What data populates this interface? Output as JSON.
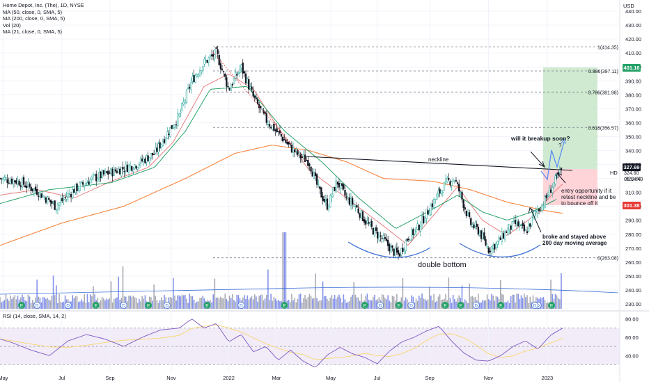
{
  "legend": {
    "title": "Home Depot, Inc. (The), 1D, NYSE",
    "lines": [
      "MA (50, close, 0, SMA, 5)",
      "MA (200, close, 0, SMA, 5)",
      "Vol (20)",
      "MA (21, close, 0, SMA, 5)"
    ]
  },
  "currency": "USD",
  "rsi_legend": "RSI (14, close, SMA, 14, 2)",
  "symbol": "HD",
  "price_tags": {
    "target": "401.16",
    "current": "327.69",
    "current_sub1": "324.60",
    "current_sub2": "05:14:40",
    "stop": "301.38"
  },
  "colors": {
    "up_candle": "#26a69a",
    "down_candle": "#131722",
    "ma50": "#26a269",
    "ma200": "#f7843e",
    "ma21": "#e57373",
    "rsi": "#7e57c2",
    "target_zone": "#c8e6c9",
    "stop_zone": "#ffcdd2",
    "annotation_blue": "#3b6fd6"
  },
  "fib_levels": [
    {
      "label": "1(414.35)",
      "value": 414.35
    },
    {
      "label": "0.886(397.11)",
      "value": 397.11
    },
    {
      "label": "0.786(381.98)",
      "value": 381.98
    },
    {
      "label": "0.618(356.57)",
      "value": 356.57
    },
    {
      "label": "0(263.08)",
      "value": 263.08
    }
  ],
  "annotations": {
    "neckline": "neckline",
    "breakup": "will it breakup soon?",
    "question": "?",
    "double_bottom": "double bottom",
    "entry": [
      "entry opportunity if it",
      "retest neckline and be",
      "to bounce off it"
    ],
    "broke": [
      "broke and stayed above",
      "200 day moving average"
    ]
  },
  "events": [
    "E",
    "D",
    "D",
    "E",
    "D",
    "E",
    "D",
    "E",
    "D",
    "E",
    "E",
    "D",
    "E",
    "D",
    "E",
    "E",
    "D",
    "E",
    "D",
    "E",
    "D"
  ],
  "chart_data": {
    "type": "candlestick",
    "title": "Home Depot, Inc. (The), 1D, NYSE",
    "x_ticks": [
      "May",
      "Jul",
      "Sep",
      "Nov",
      "2022",
      "Mar",
      "May",
      "Jul",
      "Sep",
      "Nov",
      "2023"
    ],
    "y_ticks": [
      230,
      240,
      250,
      260,
      270,
      280,
      290,
      300,
      310,
      320,
      330,
      340,
      350,
      360,
      370,
      380,
      390,
      400,
      410,
      420,
      430,
      440
    ],
    "ylim": [
      225,
      448
    ],
    "rsi_ticks": [
      40,
      60,
      80
    ],
    "rsi_ylim": [
      22,
      88
    ],
    "rsi_bands": [
      30,
      70
    ],
    "price_path": [
      [
        0,
        320
      ],
      [
        0.03,
        318
      ],
      [
        0.06,
        311
      ],
      [
        0.09,
        300
      ],
      [
        0.12,
        312
      ],
      [
        0.15,
        320
      ],
      [
        0.19,
        326
      ],
      [
        0.22,
        330
      ],
      [
        0.25,
        338
      ],
      [
        0.27,
        352
      ],
      [
        0.29,
        365
      ],
      [
        0.31,
        390
      ],
      [
        0.33,
        403
      ],
      [
        0.35,
        410
      ],
      [
        0.37,
        384
      ],
      [
        0.39,
        400
      ],
      [
        0.41,
        378
      ],
      [
        0.43,
        362
      ],
      [
        0.455,
        350
      ],
      [
        0.47,
        342
      ],
      [
        0.485,
        336
      ],
      [
        0.5,
        332
      ],
      [
        0.515,
        312
      ],
      [
        0.53,
        300
      ],
      [
        0.545,
        318
      ],
      [
        0.56,
        306
      ],
      [
        0.575,
        300
      ],
      [
        0.59,
        290
      ],
      [
        0.605,
        282
      ],
      [
        0.62,
        276
      ],
      [
        0.635,
        268
      ],
      [
        0.645,
        265
      ],
      [
        0.66,
        278
      ],
      [
        0.675,
        284
      ],
      [
        0.69,
        295
      ],
      [
        0.705,
        306
      ],
      [
        0.715,
        313
      ],
      [
        0.725,
        318
      ],
      [
        0.735,
        320
      ],
      [
        0.745,
        308
      ],
      [
        0.76,
        288
      ],
      [
        0.775,
        282
      ],
      [
        0.79,
        269
      ],
      [
        0.805,
        274
      ],
      [
        0.82,
        283
      ],
      [
        0.835,
        288
      ],
      [
        0.85,
        281
      ],
      [
        0.865,
        295
      ],
      [
        0.88,
        303
      ],
      [
        0.89,
        312
      ],
      [
        0.9,
        320
      ],
      [
        0.91,
        327
      ]
    ],
    "ma50_path": [
      [
        0,
        302
      ],
      [
        0.08,
        312
      ],
      [
        0.18,
        317
      ],
      [
        0.25,
        328
      ],
      [
        0.3,
        354
      ],
      [
        0.34,
        384
      ],
      [
        0.4,
        386
      ],
      [
        0.46,
        354
      ],
      [
        0.52,
        332
      ],
      [
        0.58,
        306
      ],
      [
        0.64,
        284
      ],
      [
        0.7,
        298
      ],
      [
        0.74,
        308
      ],
      [
        0.78,
        296
      ],
      [
        0.82,
        290
      ],
      [
        0.86,
        296
      ],
      [
        0.9,
        305
      ]
    ],
    "ma200_path": [
      [
        0,
        272
      ],
      [
        0.1,
        288
      ],
      [
        0.2,
        300
      ],
      [
        0.3,
        320
      ],
      [
        0.38,
        338
      ],
      [
        0.44,
        344
      ],
      [
        0.5,
        340
      ],
      [
        0.56,
        332
      ],
      [
        0.62,
        320
      ],
      [
        0.7,
        318
      ],
      [
        0.76,
        312
      ],
      [
        0.82,
        303
      ],
      [
        0.88,
        297
      ],
      [
        0.91,
        295
      ]
    ],
    "ma21_path": [
      [
        0,
        308
      ],
      [
        0.06,
        312
      ],
      [
        0.12,
        306
      ],
      [
        0.18,
        318
      ],
      [
        0.24,
        328
      ],
      [
        0.28,
        346
      ],
      [
        0.33,
        386
      ],
      [
        0.37,
        395
      ],
      [
        0.41,
        384
      ],
      [
        0.45,
        356
      ],
      [
        0.5,
        326
      ],
      [
        0.56,
        306
      ],
      [
        0.62,
        286
      ],
      [
        0.66,
        272
      ],
      [
        0.7,
        293
      ],
      [
        0.74,
        314
      ],
      [
        0.78,
        290
      ],
      [
        0.82,
        279
      ],
      [
        0.86,
        292
      ],
      [
        0.9,
        312
      ],
      [
        0.91,
        316
      ]
    ],
    "rsi_path": [
      [
        0,
        58
      ],
      [
        0.02,
        54
      ],
      [
        0.05,
        46
      ],
      [
        0.08,
        40
      ],
      [
        0.11,
        56
      ],
      [
        0.14,
        63
      ],
      [
        0.17,
        58
      ],
      [
        0.2,
        50
      ],
      [
        0.23,
        60
      ],
      [
        0.26,
        68
      ],
      [
        0.29,
        70
      ],
      [
        0.31,
        80
      ],
      [
        0.33,
        70
      ],
      [
        0.35,
        75
      ],
      [
        0.37,
        55
      ],
      [
        0.39,
        63
      ],
      [
        0.41,
        44
      ],
      [
        0.43,
        50
      ],
      [
        0.45,
        35
      ],
      [
        0.47,
        46
      ],
      [
        0.49,
        34
      ],
      [
        0.51,
        27
      ],
      [
        0.53,
        41
      ],
      [
        0.55,
        49
      ],
      [
        0.57,
        42
      ],
      [
        0.59,
        38
      ],
      [
        0.61,
        31
      ],
      [
        0.63,
        45
      ],
      [
        0.65,
        55
      ],
      [
        0.67,
        60
      ],
      [
        0.69,
        67
      ],
      [
        0.71,
        72
      ],
      [
        0.73,
        56
      ],
      [
        0.75,
        43
      ],
      [
        0.77,
        35
      ],
      [
        0.79,
        34
      ],
      [
        0.81,
        40
      ],
      [
        0.83,
        50
      ],
      [
        0.85,
        56
      ],
      [
        0.87,
        47
      ],
      [
        0.89,
        62
      ],
      [
        0.91,
        70
      ]
    ]
  }
}
